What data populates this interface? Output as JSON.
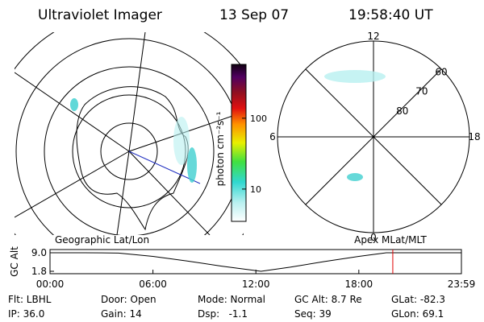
{
  "header": {
    "instrument": "Ultraviolet Imager",
    "date": "13 Sep 07",
    "time": "19:58:40 UT"
  },
  "colorbar": {
    "label": "photon cm⁻²s⁻¹",
    "lim": [
      3.5,
      575
    ],
    "ticks": [
      10,
      100
    ],
    "log": true
  },
  "mlt_plot": {
    "mlt": [
      12,
      6,
      0,
      18
    ],
    "mlat": [
      80,
      70,
      60
    ]
  },
  "altitude": {
    "left_title": "Geographic Lat/Lon",
    "right_title": "Apex MLat/MLT",
    "ylabel": "GC Alt",
    "ylim": [
      1.8,
      9.0
    ],
    "yticks": [
      {
        "value": 9,
        "label": "9.0"
      },
      1.8
    ],
    "xlim": [
      0,
      23.98
    ],
    "xticks": [
      {
        "value": 0,
        "label": "00:00"
      },
      {
        "value": 6,
        "label": "06:00"
      },
      {
        "value": 12,
        "label": "12:00"
      },
      {
        "value": 18,
        "label": "18:00"
      },
      {
        "value": 23.98,
        "label": "23:59"
      }
    ],
    "x": [
      0,
      2,
      4,
      6,
      8,
      10,
      12.3,
      14,
      16,
      18,
      19.6,
      22,
      23.98
    ],
    "values": [
      9,
      9,
      8.9,
      7.6,
      5.8,
      3.8,
      1.8,
      3.4,
      5.6,
      7.6,
      9,
      9,
      9
    ],
    "current_time": 19.98,
    "current_color": "#e00000"
  },
  "footer": {
    "rows": [
      [
        "Flt: LBHL",
        "Door: Open",
        "Mode: Normal",
        "GC Alt: 8.7 Re",
        "GLat: -82.3"
      ],
      [
        "IP: 36.0",
        "Gain: 14",
        "Dsp:   -1.1",
        "Seq: 39",
        "GLon: 69.1"
      ]
    ]
  }
}
